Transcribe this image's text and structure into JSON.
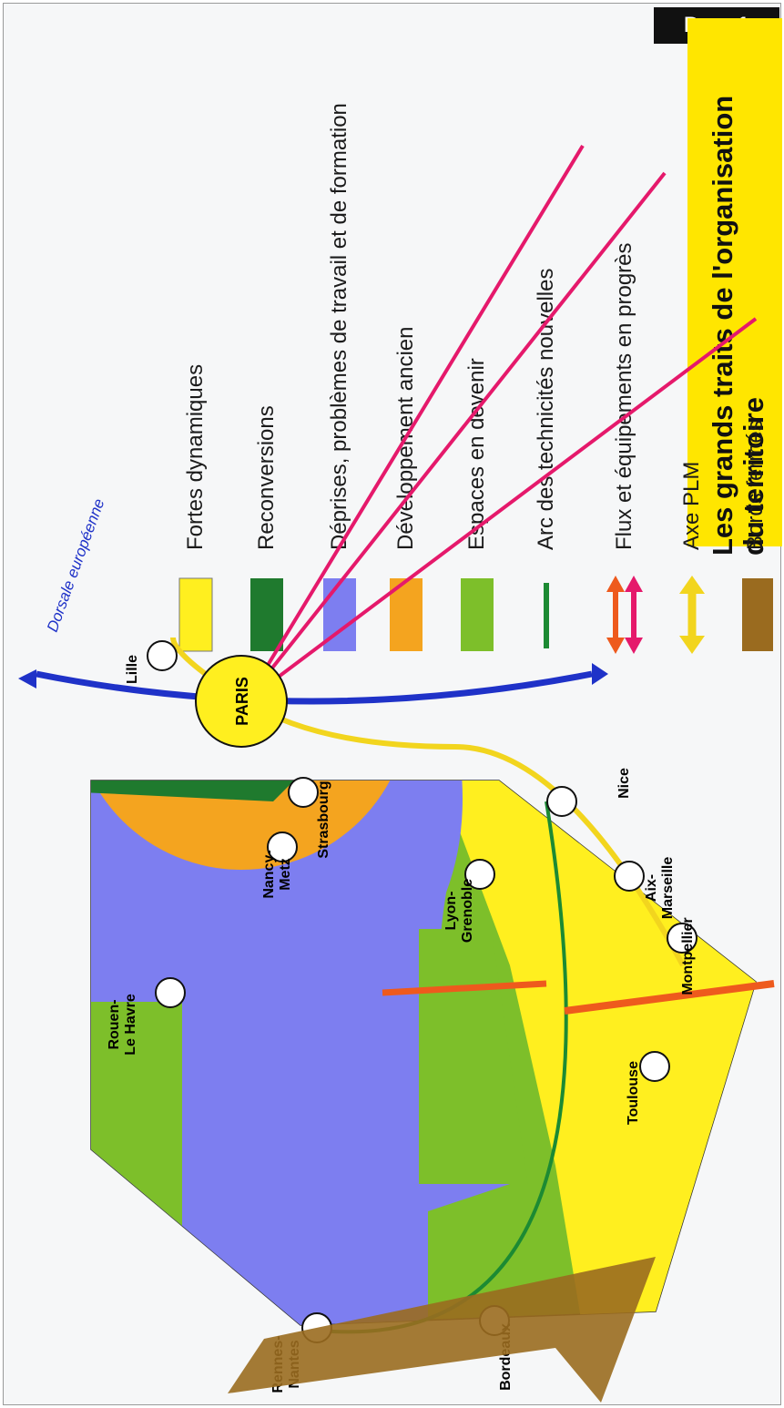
{
  "doc_label": "Doc. 1",
  "legend": {
    "title_line1": "Les grands traits de l'organisation",
    "title_line2": "du territoire",
    "items": [
      {
        "label": "Fortes dynamiques",
        "color": "#ffef1f"
      },
      {
        "label": "Reconversions",
        "color": "#1f7a2e"
      },
      {
        "label": "Déprises, problèmes de travail et de formation",
        "color": "#7d7ef0"
      },
      {
        "label": "Développement ancien",
        "color": "#f4a41f"
      },
      {
        "label": "Espaces en devenir",
        "color": "#7dbf2a"
      },
      {
        "label": "Arc des technicités nouvelles",
        "color": "#1c8a33"
      },
      {
        "label": "Flux et équipements en progrès",
        "color": "#ee5a1d"
      },
      {
        "label": "Axe PLM",
        "color": "#f2d51e"
      },
      {
        "label": "Bords fermés",
        "color": "#9a6b1f"
      }
    ]
  },
  "map": {
    "dorsale_label": "Dorsale européenne",
    "paris_label": "PARIS",
    "cities": [
      {
        "name_line1": "Lille",
        "name_line2": ""
      },
      {
        "name_line1": "Nancy-",
        "name_line2": "Metz"
      },
      {
        "name_line1": "Strasbourg",
        "name_line2": ""
      },
      {
        "name_line1": "Lyon-",
        "name_line2": "Grenoble"
      },
      {
        "name_line1": "Nice",
        "name_line2": ""
      },
      {
        "name_line1": "Aix-",
        "name_line2": "Marseille"
      },
      {
        "name_line1": "Montpellier",
        "name_line2": ""
      },
      {
        "name_line1": "Toulouse",
        "name_line2": ""
      },
      {
        "name_line1": "Bordeaux",
        "name_line2": ""
      },
      {
        "name_line1": "Rennes-",
        "name_line2": "Nantes"
      },
      {
        "name_line1": "Rouen-",
        "name_line2": "Le Havre"
      }
    ]
  }
}
